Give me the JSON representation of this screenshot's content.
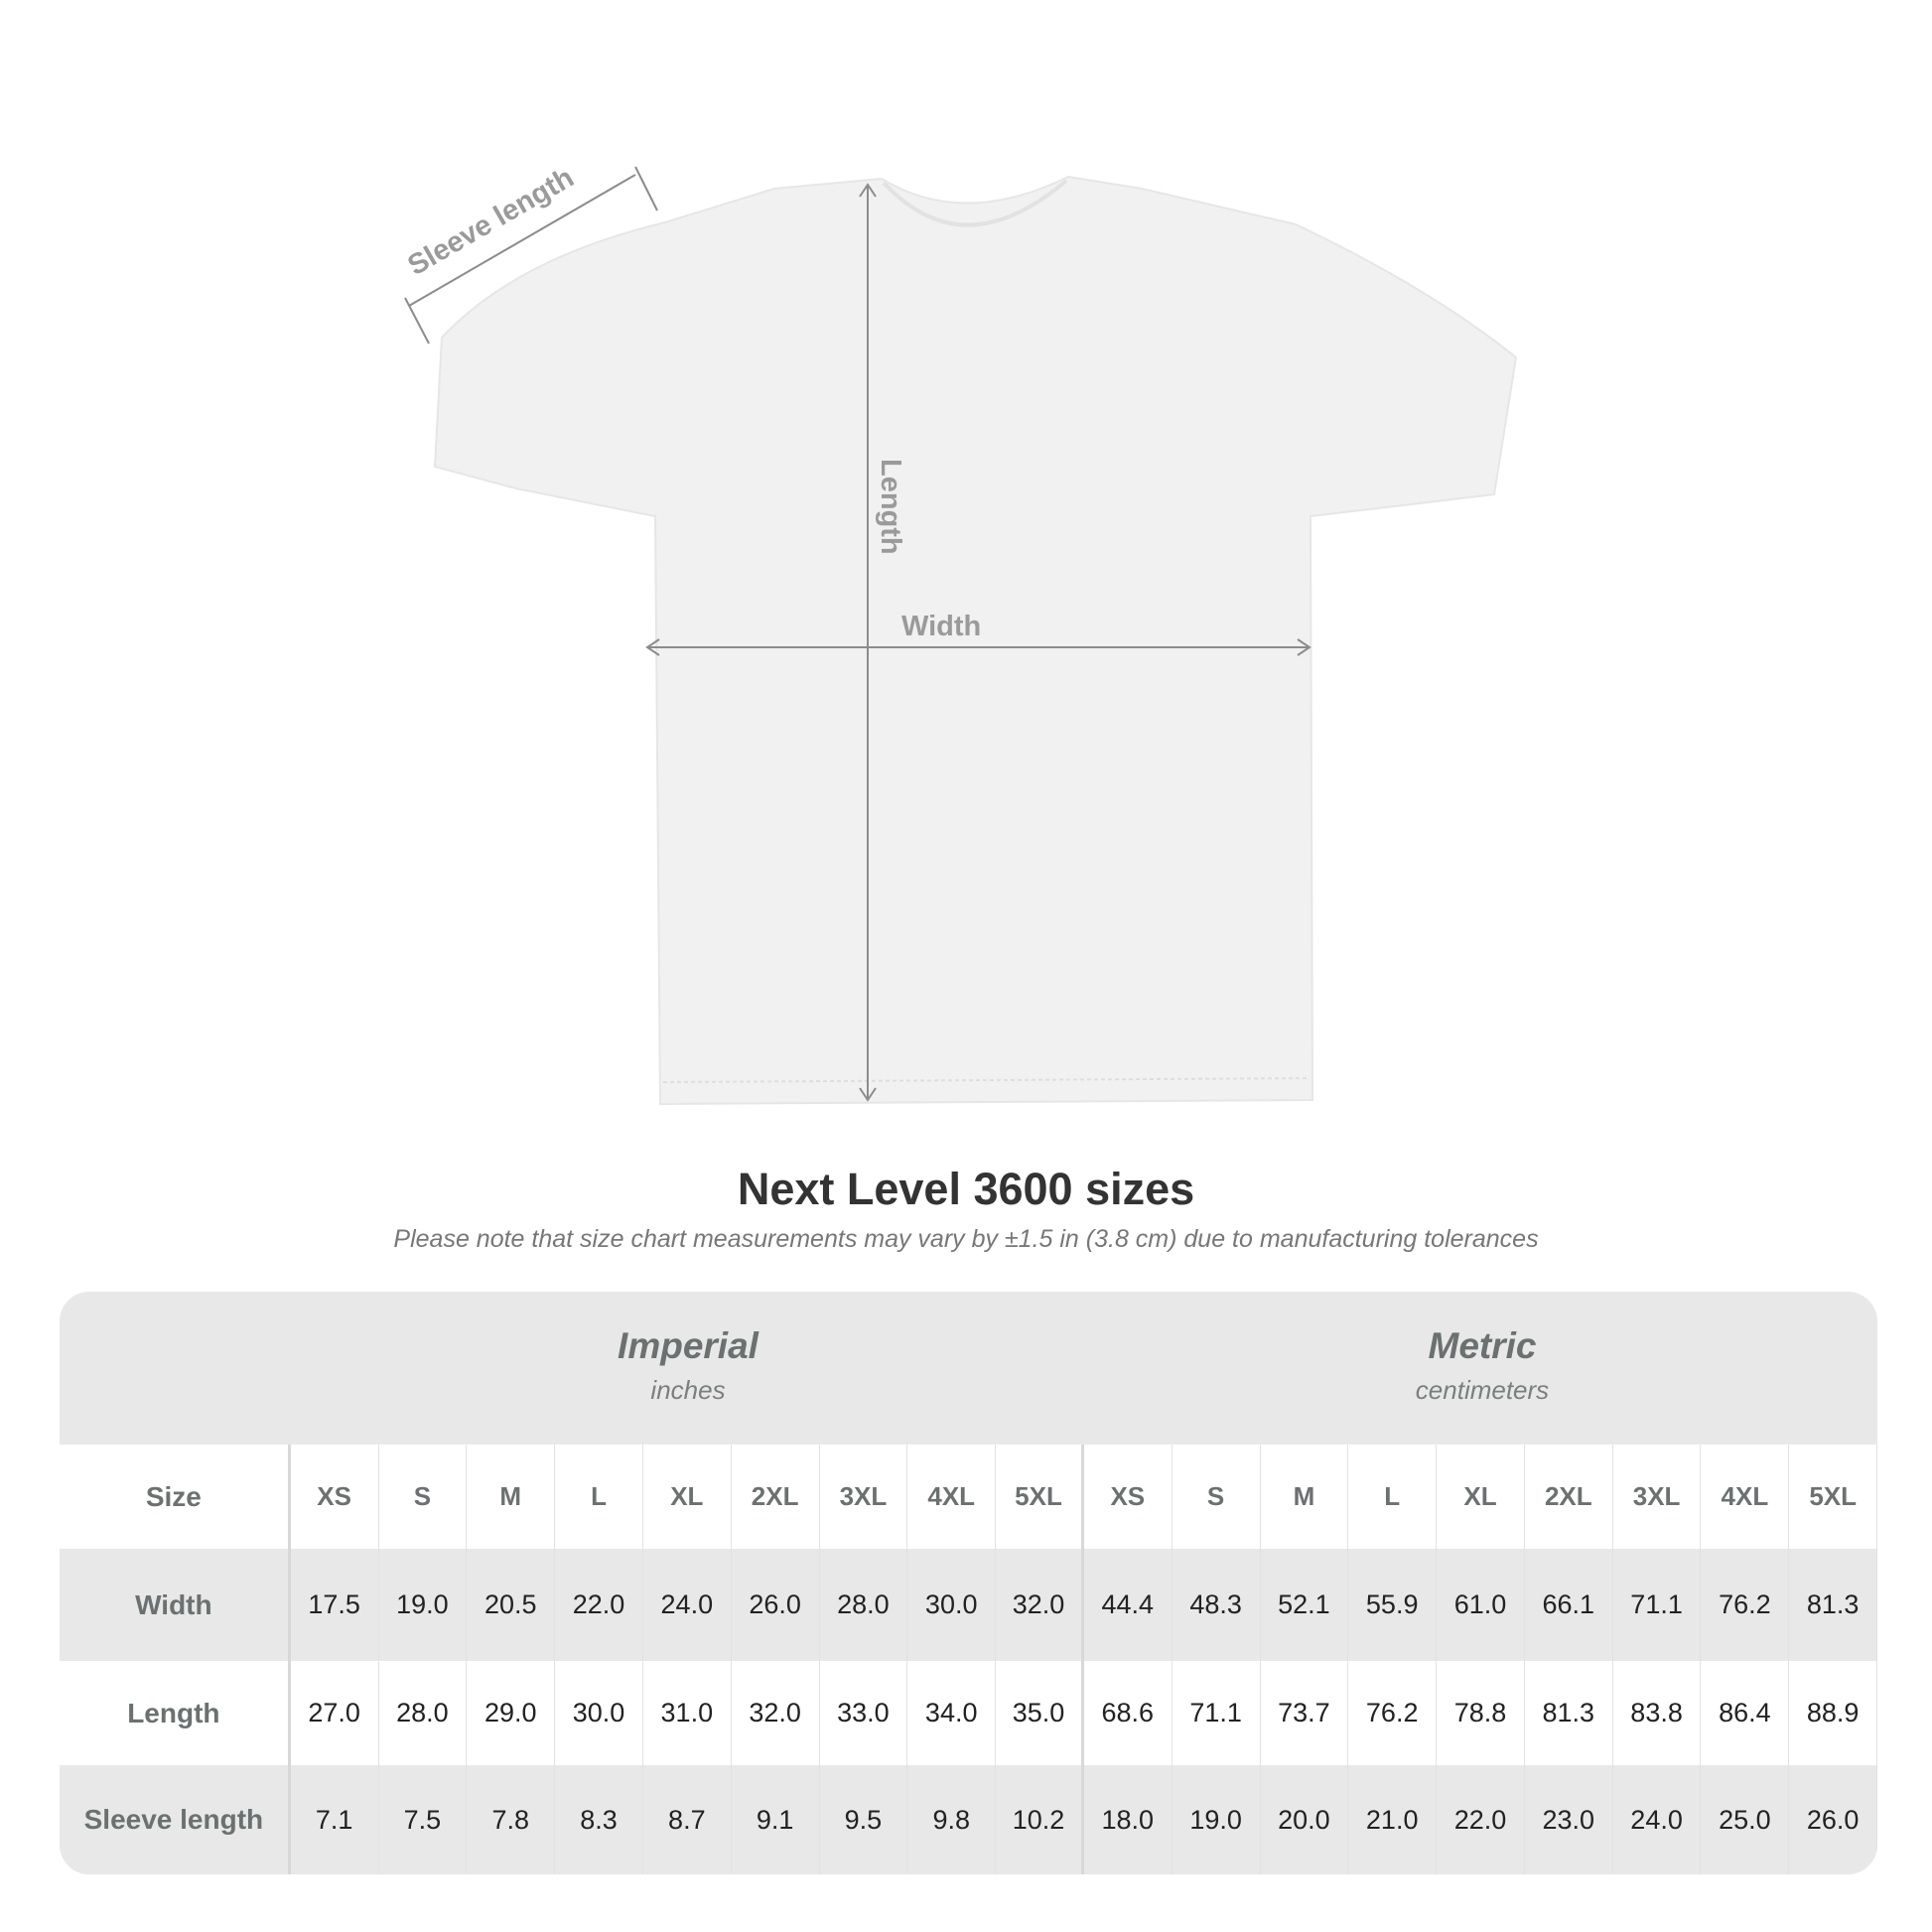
{
  "diagram": {
    "labels": {
      "sleeve": "Sleeve length",
      "length": "Length",
      "width": "Width"
    },
    "shirt_color": "#f1f1f1",
    "arrow_color": "#8c8c8c"
  },
  "title": "Next Level 3600 sizes",
  "note": "Please note that size chart measurements may vary by ±1.5 in (3.8 cm) due to manufacturing tolerances",
  "table": {
    "imperial": {
      "name": "Imperial",
      "unit": "inches"
    },
    "metric": {
      "name": "Metric",
      "unit": "centimeters"
    },
    "size_label": "Size",
    "sizes": [
      "XS",
      "S",
      "M",
      "L",
      "XL",
      "2XL",
      "3XL",
      "4XL",
      "5XL"
    ],
    "rows": [
      {
        "label": "Width",
        "imperial": [
          "17.5",
          "19.0",
          "20.5",
          "22.0",
          "24.0",
          "26.0",
          "28.0",
          "30.0",
          "32.0"
        ],
        "metric": [
          "44.4",
          "48.3",
          "52.1",
          "55.9",
          "61.0",
          "66.1",
          "71.1",
          "76.2",
          "81.3"
        ]
      },
      {
        "label": "Length",
        "imperial": [
          "27.0",
          "28.0",
          "29.0",
          "30.0",
          "31.0",
          "32.0",
          "33.0",
          "34.0",
          "35.0"
        ],
        "metric": [
          "68.6",
          "71.1",
          "73.7",
          "76.2",
          "78.8",
          "81.3",
          "83.8",
          "86.4",
          "88.9"
        ]
      },
      {
        "label": "Sleeve length",
        "imperial": [
          "7.1",
          "7.5",
          "7.8",
          "8.3",
          "8.7",
          "9.1",
          "9.5",
          "9.8",
          "10.2"
        ],
        "metric": [
          "18.0",
          "19.0",
          "20.0",
          "21.0",
          "22.0",
          "23.0",
          "24.0",
          "25.0",
          "26.0"
        ]
      }
    ]
  }
}
